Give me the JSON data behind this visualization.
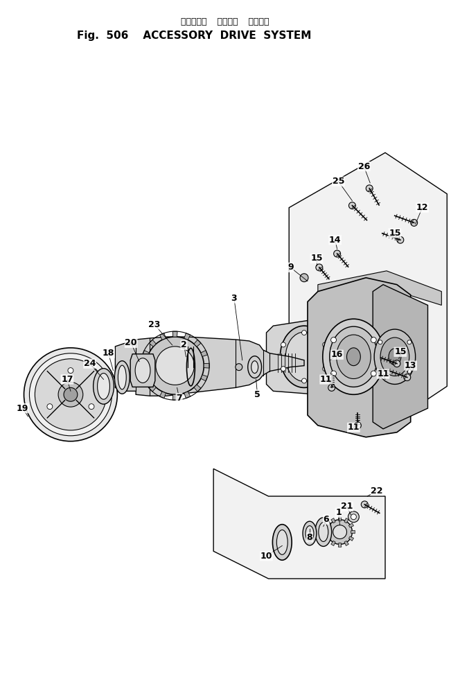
{
  "title_japanese": "アクセサリ  ドライブ  システム",
  "title_english": "Fig.  506    ACCESSORY  DRIVE  SYSTEM",
  "bg_color": "#ffffff",
  "line_color": "#000000",
  "title_fontsize": 11,
  "subtitle_fontsize": 9,
  "label_fontsize": 9,
  "figsize": [
    6.51,
    9.74
  ],
  "dpi": 100
}
